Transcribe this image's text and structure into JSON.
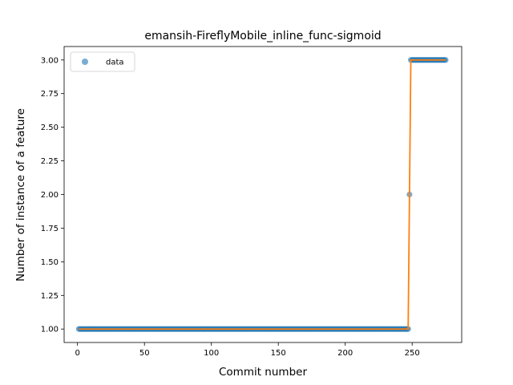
{
  "chart_data": {
    "type": "scatter",
    "title": "emansih-FireflyMobile_inline_func-sigmoid",
    "xlabel": "Commit number",
    "ylabel": "Number of instance of a feature",
    "xlim": [
      -10,
      287
    ],
    "ylim": [
      0.9,
      3.1
    ],
    "xticks": [
      0,
      50,
      100,
      150,
      200,
      250
    ],
    "yticks": [
      1.0,
      1.25,
      1.5,
      1.75,
      2.0,
      2.25,
      2.5,
      2.75,
      3.0
    ],
    "legend": {
      "placement": "top-left",
      "entries": [
        "data"
      ]
    },
    "series": [
      {
        "name": "data",
        "kind": "scatter",
        "color": "#1f77b4",
        "segments": [
          {
            "x_start": 1,
            "x_end": 247,
            "y": 1
          },
          {
            "x_start": 248,
            "x_end": 248,
            "y": 2
          },
          {
            "x_start": 249,
            "x_end": 275,
            "y": 3
          }
        ]
      },
      {
        "kind": "line",
        "color": "#ff7f0e",
        "points": [
          [
            1,
            1
          ],
          [
            247,
            1
          ],
          [
            248,
            2
          ],
          [
            249,
            3
          ],
          [
            275,
            3
          ]
        ]
      }
    ]
  }
}
